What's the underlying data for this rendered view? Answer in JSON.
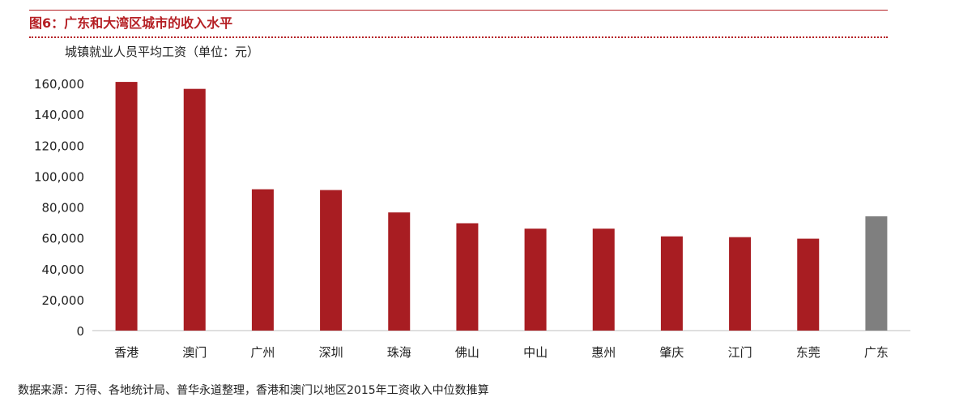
{
  "header": {
    "title": "图6：广东和大湾区城市的收入水平",
    "subtitle": "城镇就业人员平均工资（单位：元）"
  },
  "footer": {
    "source": "数据来源：万得、各地统计局、普华永道整理，香港和澳门以地区2015年工资收入中位数推算"
  },
  "colors": {
    "accent": "#b51f24",
    "bar": "#a81d22",
    "highlight_bar": "#7f7f7f",
    "axis": "#bfbfbf"
  },
  "chart_data": {
    "type": "bar",
    "title": "",
    "xlabel": "",
    "ylabel": "城镇就业人员平均工资（单位：元）",
    "categories": [
      "香港",
      "澳门",
      "广州",
      "深圳",
      "珠海",
      "佛山",
      "中山",
      "惠州",
      "肇庆",
      "江门",
      "东莞",
      "广东"
    ],
    "values": [
      161000,
      156500,
      91500,
      91000,
      76500,
      69500,
      66000,
      66000,
      61000,
      60500,
      59500,
      74000
    ],
    "highlight": [
      "广东"
    ],
    "ylim": [
      0,
      160000
    ],
    "yticks": [
      "0",
      "20,000",
      "40,000",
      "60,000",
      "80,000",
      "100,000",
      "120,000",
      "140,000",
      "160,000"
    ],
    "grid": false,
    "legend": "none"
  }
}
